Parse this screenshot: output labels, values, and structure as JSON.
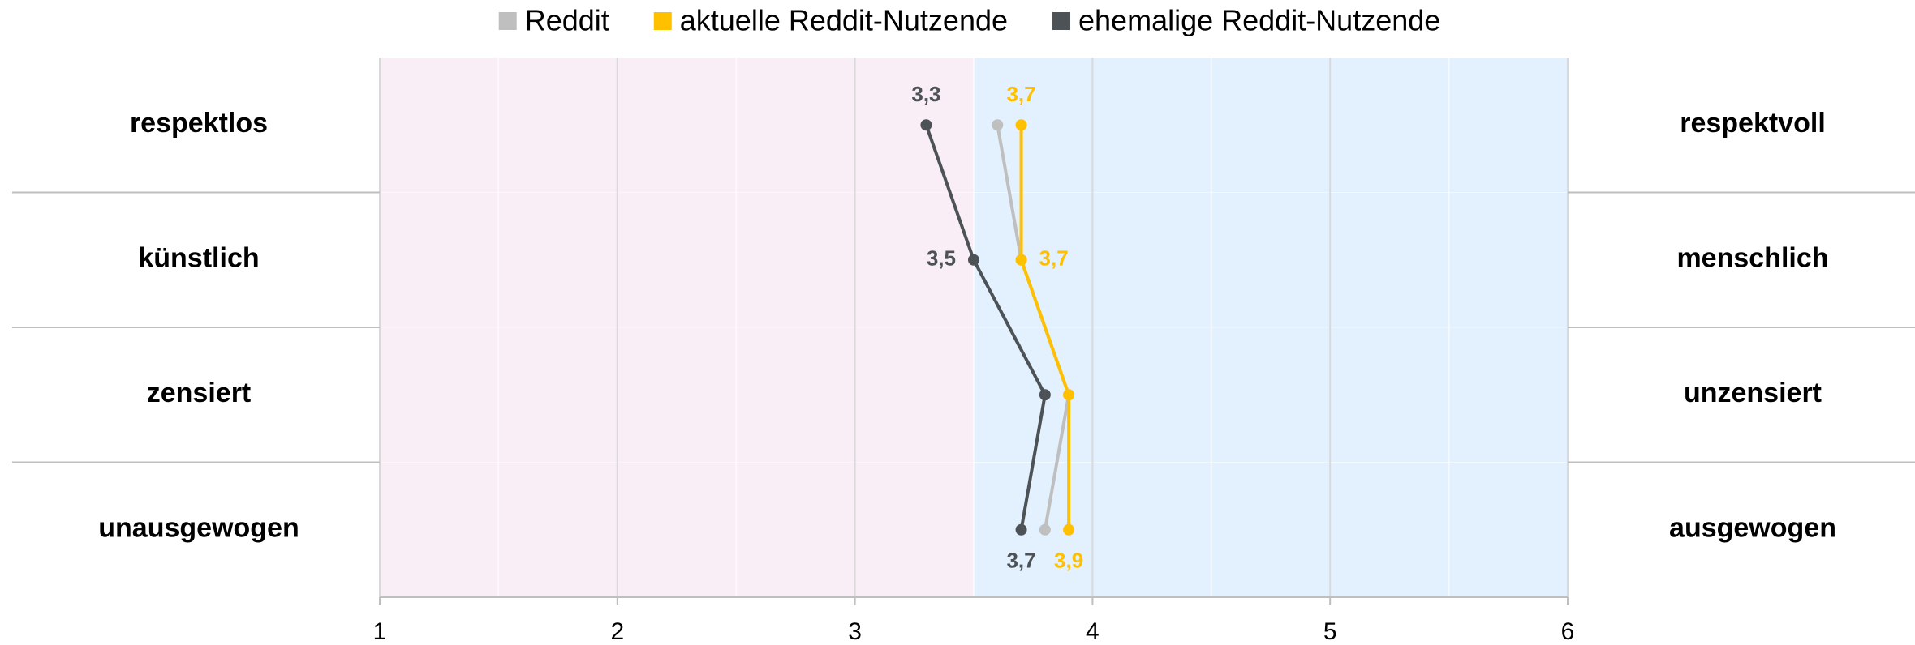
{
  "chart_data": {
    "type": "line",
    "orientation": "horizontal",
    "categories": [
      "respektlos",
      "künstlich",
      "zensiert",
      "unausgewogen"
    ],
    "right_labels": [
      "respektvoll",
      "menschlich",
      "unzensiert",
      "ausgewogen"
    ],
    "series": [
      {
        "name": "Reddit",
        "color": "#bfbfbf",
        "values": [
          3.6,
          3.7,
          3.9,
          3.8
        ]
      },
      {
        "name": "aktuelle Reddit-Nutzende",
        "color": "#ffc000",
        "values": [
          3.7,
          3.7,
          3.9,
          3.9
        ],
        "value_labels": [
          "3,7",
          "3,7",
          null,
          "3,9"
        ]
      },
      {
        "name": "ehemalige Reddit-Nutzende",
        "color": "#4d5256",
        "values": [
          3.3,
          3.5,
          3.8,
          3.7
        ],
        "value_labels": [
          "3,3",
          "3,5",
          null,
          "3,7"
        ]
      }
    ],
    "xlim": [
      1,
      6
    ],
    "xticks": [
      1,
      2,
      3,
      4,
      5,
      6
    ],
    "minor_xticks": [
      1.5,
      2.5,
      3.5,
      4.5,
      5.5
    ],
    "grid": true,
    "shading": [
      {
        "range": [
          1,
          3.5
        ],
        "color": "#f9edf6"
      },
      {
        "range": [
          3.5,
          6
        ],
        "color": "#e3f0fd"
      }
    ],
    "legend": "top"
  }
}
